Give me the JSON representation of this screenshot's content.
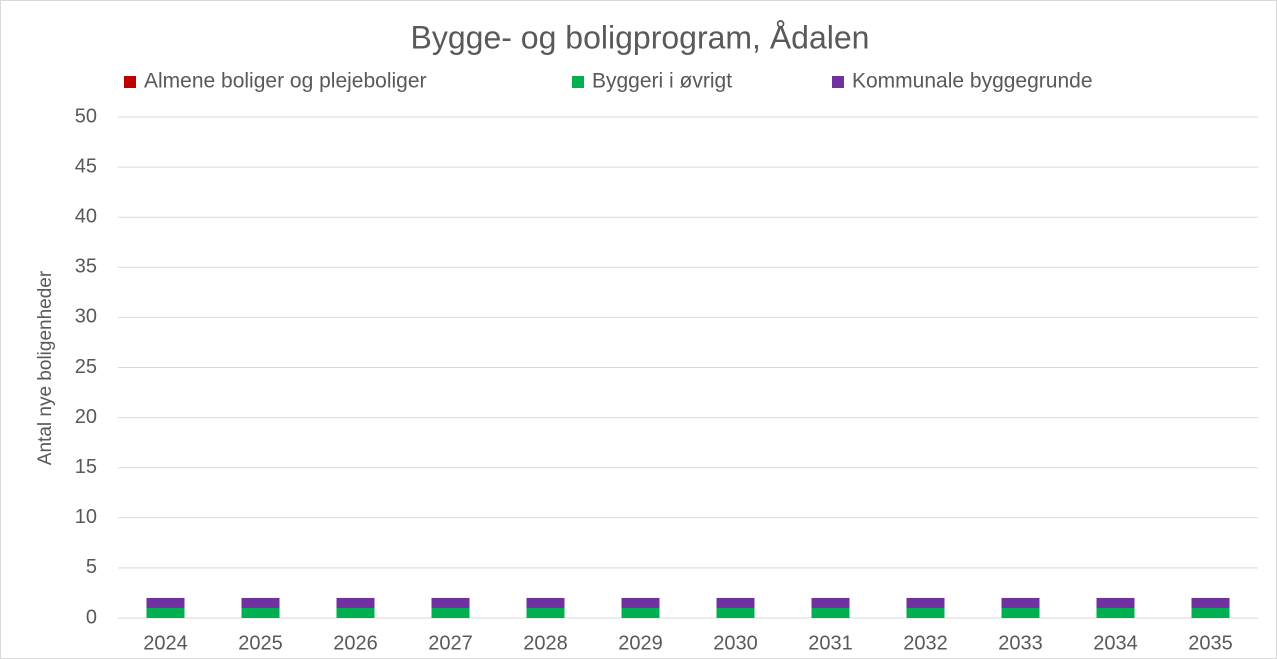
{
  "chart_data": {
    "type": "stacked_bar",
    "title": "Bygge- og boligprogram, Ådalen",
    "y_axis_label": "Antal nye boligenheder",
    "categories": [
      "2024",
      "2025",
      "2026",
      "2027",
      "2028",
      "2029",
      "2030",
      "2031",
      "2032",
      "2033",
      "2034",
      "2035"
    ],
    "series": [
      {
        "name": "Almene boliger og plejeboliger",
        "color": "#c00000",
        "values": [
          0,
          0,
          0,
          0,
          0,
          0,
          0,
          0,
          0,
          0,
          0,
          0
        ]
      },
      {
        "name": "Byggeri i øvrigt",
        "color": "#00b050",
        "values": [
          1,
          1,
          1,
          1,
          1,
          1,
          1,
          1,
          1,
          1,
          1,
          1
        ]
      },
      {
        "name": "Kommunale byggegrunde",
        "color": "#7030a0",
        "values": [
          1,
          1,
          1,
          1,
          1,
          1,
          1,
          1,
          1,
          1,
          1,
          1
        ]
      }
    ],
    "ylim": [
      0,
      50
    ],
    "yticks": [
      0,
      5,
      10,
      15,
      20,
      25,
      30,
      35,
      40,
      45,
      50
    ],
    "grid": true,
    "legend": "top"
  }
}
